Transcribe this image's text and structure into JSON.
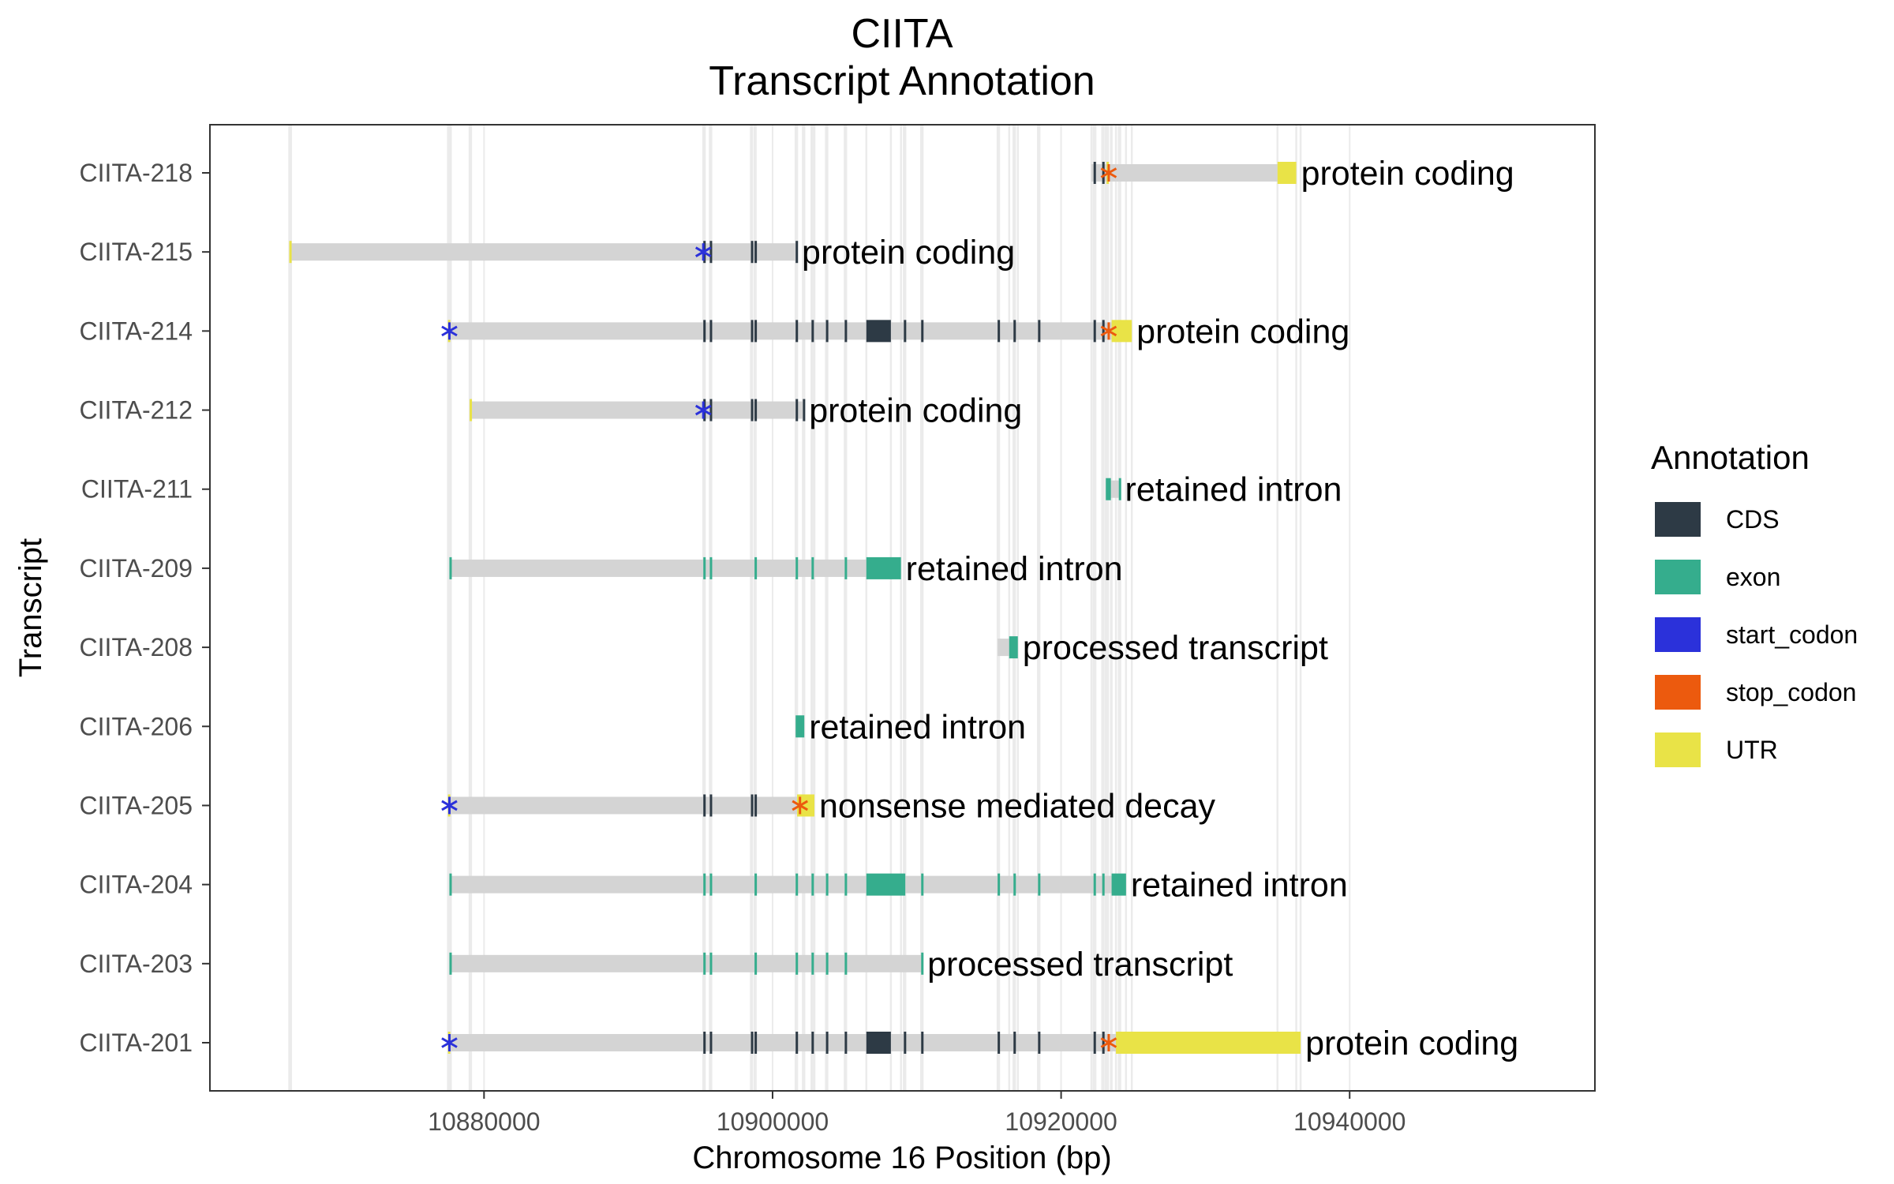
{
  "title_line1": "CIITA",
  "title_line2": "Transcript Annotation",
  "colors": {
    "CDS": "#2d3a45",
    "exon": "#35ad8d",
    "start_codon": "#2b31da",
    "stop_codon": "#ec5a0e",
    "UTR": "#e9e347",
    "intron": "#d4d4d4",
    "grid": "#ebebeb"
  },
  "chart_data": {
    "type": "gene-structure",
    "title": "CIITA\nTranscript Annotation",
    "xlabel": "Chromosome 16 Position (bp)",
    "ylabel": "Transcript",
    "xlim": [
      10861000,
      10957000
    ],
    "xticks": [
      10880000,
      10900000,
      10920000,
      10940000
    ],
    "xtick_labels": [
      "10880000",
      "10900000",
      "10920000",
      "10940000"
    ],
    "grid": true,
    "legend": {
      "title": "Annotation",
      "placement": "right",
      "items": [
        "CDS",
        "exon",
        "start_codon",
        "stop_codon",
        "UTR"
      ]
    },
    "transcripts": [
      {
        "name": "CIITA-218",
        "biotype": "protein coding",
        "start": 10922100,
        "end": 10936300,
        "features": [
          {
            "type": "CDS",
            "start": 10922250,
            "end": 10922380
          },
          {
            "type": "CDS",
            "start": 10922850,
            "end": 10922950
          },
          {
            "type": "UTR",
            "start": 10923150,
            "end": 10923250
          },
          {
            "type": "UTR",
            "start": 10935000,
            "end": 10936300
          },
          {
            "type": "stop_codon",
            "start": 10923300,
            "end": 10923303
          }
        ]
      },
      {
        "name": "CIITA-215",
        "biotype": "protein coding",
        "start": 10866500,
        "end": 10901700,
        "features": [
          {
            "type": "UTR",
            "start": 10866500,
            "end": 10866620
          },
          {
            "type": "CDS",
            "start": 10895200,
            "end": 10895300
          },
          {
            "type": "CDS",
            "start": 10895650,
            "end": 10895750
          },
          {
            "type": "CDS",
            "start": 10898500,
            "end": 10898580
          },
          {
            "type": "CDS",
            "start": 10898750,
            "end": 10898830
          },
          {
            "type": "CDS",
            "start": 10901600,
            "end": 10901700
          },
          {
            "type": "start_codon",
            "start": 10895200,
            "end": 10895203
          }
        ]
      },
      {
        "name": "CIITA-214",
        "biotype": "protein coding",
        "start": 10877500,
        "end": 10924900,
        "features": [
          {
            "type": "UTR",
            "start": 10877500,
            "end": 10877600
          },
          {
            "type": "CDS",
            "start": 10895200,
            "end": 10895300
          },
          {
            "type": "CDS",
            "start": 10895650,
            "end": 10895750
          },
          {
            "type": "CDS",
            "start": 10898500,
            "end": 10898580
          },
          {
            "type": "CDS",
            "start": 10898750,
            "end": 10898830
          },
          {
            "type": "CDS",
            "start": 10901600,
            "end": 10901700
          },
          {
            "type": "CDS",
            "start": 10902700,
            "end": 10902800
          },
          {
            "type": "CDS",
            "start": 10903700,
            "end": 10903800
          },
          {
            "type": "CDS",
            "start": 10905000,
            "end": 10905100
          },
          {
            "type": "CDS",
            "start": 10906500,
            "end": 10908200
          },
          {
            "type": "CDS",
            "start": 10909100,
            "end": 10909200
          },
          {
            "type": "CDS",
            "start": 10910300,
            "end": 10910400
          },
          {
            "type": "CDS",
            "start": 10915600,
            "end": 10915700
          },
          {
            "type": "CDS",
            "start": 10916700,
            "end": 10916800
          },
          {
            "type": "CDS",
            "start": 10918400,
            "end": 10918500
          },
          {
            "type": "CDS",
            "start": 10922250,
            "end": 10922380
          },
          {
            "type": "CDS",
            "start": 10922850,
            "end": 10922950
          },
          {
            "type": "UTR",
            "start": 10923500,
            "end": 10924900
          },
          {
            "type": "start_codon",
            "start": 10877600,
            "end": 10877603
          },
          {
            "type": "stop_codon",
            "start": 10923300,
            "end": 10923303
          }
        ]
      },
      {
        "name": "CIITA-212",
        "biotype": "protein coding",
        "start": 10879000,
        "end": 10902200,
        "features": [
          {
            "type": "UTR",
            "start": 10879000,
            "end": 10879100
          },
          {
            "type": "CDS",
            "start": 10895200,
            "end": 10895300
          },
          {
            "type": "CDS",
            "start": 10895650,
            "end": 10895750
          },
          {
            "type": "CDS",
            "start": 10898500,
            "end": 10898580
          },
          {
            "type": "CDS",
            "start": 10898750,
            "end": 10898830
          },
          {
            "type": "CDS",
            "start": 10901600,
            "end": 10901700
          },
          {
            "type": "CDS",
            "start": 10902100,
            "end": 10902200
          },
          {
            "type": "start_codon",
            "start": 10895200,
            "end": 10895203
          }
        ]
      },
      {
        "name": "CIITA-211",
        "biotype": "retained intron",
        "start": 10923100,
        "end": 10924100,
        "features": [
          {
            "type": "exon",
            "start": 10923100,
            "end": 10923450
          },
          {
            "type": "exon",
            "start": 10924000,
            "end": 10924100
          }
        ]
      },
      {
        "name": "CIITA-209",
        "biotype": "retained intron",
        "start": 10877600,
        "end": 10908900,
        "features": [
          {
            "type": "exon",
            "start": 10877600,
            "end": 10877700
          },
          {
            "type": "exon",
            "start": 10895200,
            "end": 10895300
          },
          {
            "type": "exon",
            "start": 10895650,
            "end": 10895750
          },
          {
            "type": "exon",
            "start": 10898750,
            "end": 10898830
          },
          {
            "type": "exon",
            "start": 10901600,
            "end": 10901700
          },
          {
            "type": "exon",
            "start": 10902700,
            "end": 10902800
          },
          {
            "type": "exon",
            "start": 10905000,
            "end": 10905100
          },
          {
            "type": "exon",
            "start": 10906500,
            "end": 10908900
          }
        ]
      },
      {
        "name": "CIITA-208",
        "biotype": "processed transcript",
        "start": 10915600,
        "end": 10917000,
        "features": [
          {
            "type": "exon",
            "start": 10916400,
            "end": 10917000
          }
        ]
      },
      {
        "name": "CIITA-206",
        "biotype": "retained intron",
        "start": 10901600,
        "end": 10902200,
        "features": [
          {
            "type": "exon",
            "start": 10901600,
            "end": 10902200
          }
        ]
      },
      {
        "name": "CIITA-205",
        "biotype": "nonsense mediated decay",
        "start": 10877500,
        "end": 10902900,
        "features": [
          {
            "type": "UTR",
            "start": 10877500,
            "end": 10877600
          },
          {
            "type": "CDS",
            "start": 10895200,
            "end": 10895300
          },
          {
            "type": "CDS",
            "start": 10895650,
            "end": 10895750
          },
          {
            "type": "CDS",
            "start": 10898500,
            "end": 10898580
          },
          {
            "type": "CDS",
            "start": 10898750,
            "end": 10898830
          },
          {
            "type": "UTR",
            "start": 10901700,
            "end": 10902900
          },
          {
            "type": "start_codon",
            "start": 10877600,
            "end": 10877603
          },
          {
            "type": "stop_codon",
            "start": 10901900,
            "end": 10901903
          }
        ]
      },
      {
        "name": "CIITA-204",
        "biotype": "retained intron",
        "start": 10877600,
        "end": 10924500,
        "features": [
          {
            "type": "exon",
            "start": 10877600,
            "end": 10877700
          },
          {
            "type": "exon",
            "start": 10895200,
            "end": 10895300
          },
          {
            "type": "exon",
            "start": 10895650,
            "end": 10895750
          },
          {
            "type": "exon",
            "start": 10898750,
            "end": 10898830
          },
          {
            "type": "exon",
            "start": 10901600,
            "end": 10901700
          },
          {
            "type": "exon",
            "start": 10902700,
            "end": 10902800
          },
          {
            "type": "exon",
            "start": 10903700,
            "end": 10903800
          },
          {
            "type": "exon",
            "start": 10905000,
            "end": 10905100
          },
          {
            "type": "exon",
            "start": 10906500,
            "end": 10909200
          },
          {
            "type": "exon",
            "start": 10910300,
            "end": 10910400
          },
          {
            "type": "exon",
            "start": 10915600,
            "end": 10915700
          },
          {
            "type": "exon",
            "start": 10916700,
            "end": 10916800
          },
          {
            "type": "exon",
            "start": 10918400,
            "end": 10918500
          },
          {
            "type": "exon",
            "start": 10922250,
            "end": 10922380
          },
          {
            "type": "exon",
            "start": 10922850,
            "end": 10922950
          },
          {
            "type": "exon",
            "start": 10923500,
            "end": 10924500
          }
        ]
      },
      {
        "name": "CIITA-203",
        "biotype": "processed transcript",
        "start": 10877600,
        "end": 10910400,
        "features": [
          {
            "type": "exon",
            "start": 10877600,
            "end": 10877700
          },
          {
            "type": "exon",
            "start": 10895200,
            "end": 10895300
          },
          {
            "type": "exon",
            "start": 10895650,
            "end": 10895750
          },
          {
            "type": "exon",
            "start": 10898750,
            "end": 10898830
          },
          {
            "type": "exon",
            "start": 10901600,
            "end": 10901700
          },
          {
            "type": "exon",
            "start": 10902700,
            "end": 10902800
          },
          {
            "type": "exon",
            "start": 10903700,
            "end": 10903800
          },
          {
            "type": "exon",
            "start": 10905000,
            "end": 10905100
          },
          {
            "type": "exon",
            "start": 10910300,
            "end": 10910400
          }
        ]
      },
      {
        "name": "CIITA-201",
        "biotype": "protein coding",
        "start": 10877500,
        "end": 10936600,
        "features": [
          {
            "type": "UTR",
            "start": 10877500,
            "end": 10877600
          },
          {
            "type": "CDS",
            "start": 10895200,
            "end": 10895300
          },
          {
            "type": "CDS",
            "start": 10895650,
            "end": 10895750
          },
          {
            "type": "CDS",
            "start": 10898500,
            "end": 10898580
          },
          {
            "type": "CDS",
            "start": 10898750,
            "end": 10898830
          },
          {
            "type": "CDS",
            "start": 10901600,
            "end": 10901700
          },
          {
            "type": "CDS",
            "start": 10902700,
            "end": 10902800
          },
          {
            "type": "CDS",
            "start": 10903700,
            "end": 10903800
          },
          {
            "type": "CDS",
            "start": 10905000,
            "end": 10905100
          },
          {
            "type": "CDS",
            "start": 10906500,
            "end": 10908200
          },
          {
            "type": "CDS",
            "start": 10909100,
            "end": 10909200
          },
          {
            "type": "CDS",
            "start": 10910300,
            "end": 10910400
          },
          {
            "type": "CDS",
            "start": 10915600,
            "end": 10915700
          },
          {
            "type": "CDS",
            "start": 10916700,
            "end": 10916800
          },
          {
            "type": "CDS",
            "start": 10918400,
            "end": 10918500
          },
          {
            "type": "CDS",
            "start": 10922250,
            "end": 10922380
          },
          {
            "type": "CDS",
            "start": 10922850,
            "end": 10922950
          },
          {
            "type": "UTR",
            "start": 10923800,
            "end": 10936600
          },
          {
            "type": "start_codon",
            "start": 10877600,
            "end": 10877603
          },
          {
            "type": "stop_codon",
            "start": 10923300,
            "end": 10923303
          }
        ]
      }
    ]
  }
}
